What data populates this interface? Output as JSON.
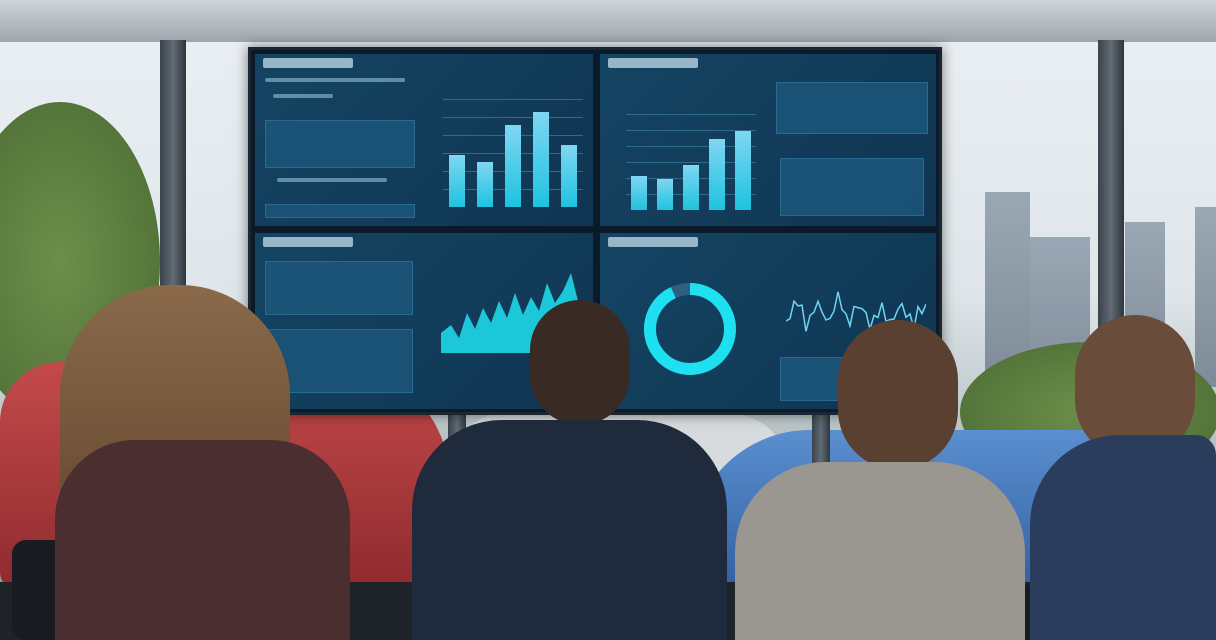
{
  "scene": {
    "description_colors": {
      "screen_bg": "#0f3552",
      "accent": "#1ec3e0",
      "car_left": "#b8383b",
      "car_right": "#3a6fb4"
    }
  },
  "screens": {
    "top_left": {
      "chart_type": "bar",
      "bar_levels": [
        0.48,
        0.42,
        0.76,
        0.88,
        0.57
      ]
    },
    "top_right": {
      "chart_type": "bar",
      "bar_levels": [
        0.35,
        0.32,
        0.47,
        0.74,
        0.82
      ]
    },
    "bottom_left": {
      "chart_type": "area"
    },
    "bottom_center": {
      "chart_type": "donut",
      "donut_fill": 0.93
    },
    "bottom_right": {
      "chart_type": "line"
    }
  }
}
